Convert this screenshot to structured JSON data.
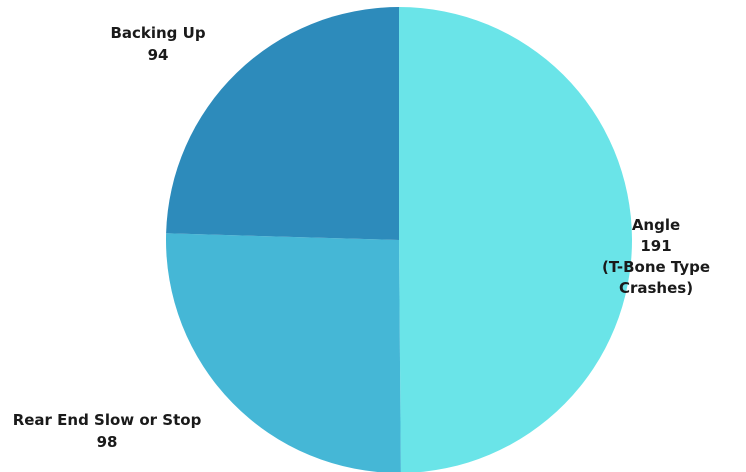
{
  "chart_data": {
    "type": "pie",
    "title": "",
    "slices": [
      {
        "category": "Angle",
        "value": 191,
        "value_label": "191",
        "note": [
          "(T-Bone Type",
          "Crashes)"
        ],
        "color": "#6ae4e8"
      },
      {
        "category": "Rear End Slow or Stop",
        "value": 98,
        "value_label": "98",
        "note": [],
        "color": "#45b7d6"
      },
      {
        "category": "Backing Up",
        "value": 94,
        "value_label": "94",
        "note": [],
        "color": "#2d8bbb"
      }
    ],
    "legend": "none",
    "labels": "outside"
  }
}
